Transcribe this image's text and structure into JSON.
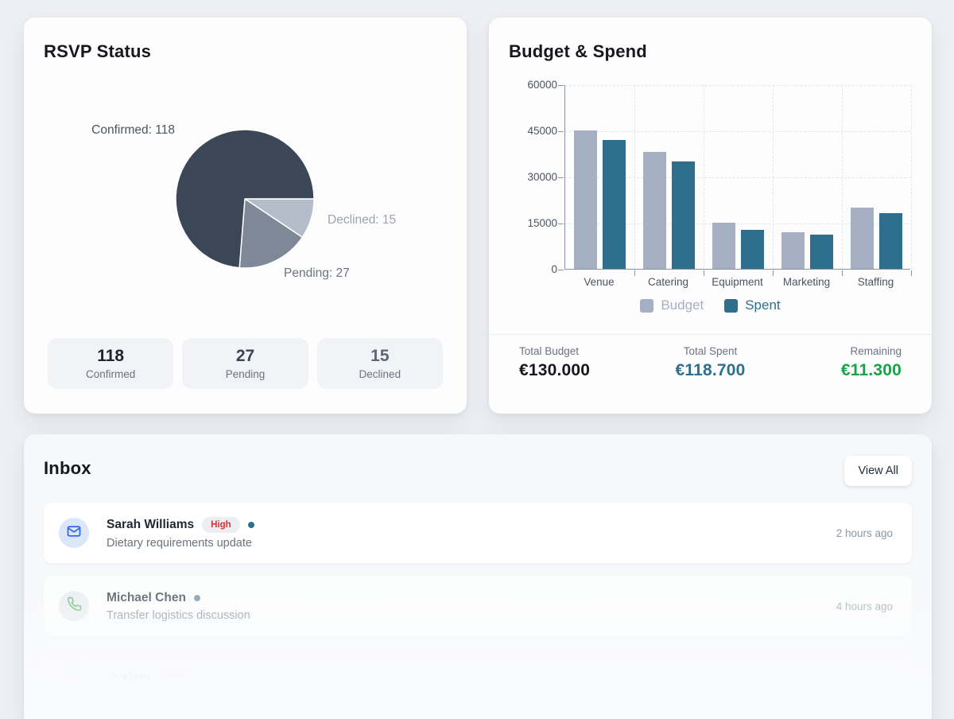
{
  "rsvp_card": {
    "title": "RSVP Status",
    "pie_labels": {
      "confirmed": "Confirmed: 118",
      "declined": "Declined: 15",
      "pending": "Pending: 27"
    },
    "stats": [
      {
        "value": "118",
        "label": "Confirmed",
        "value_color": "#20242c"
      },
      {
        "value": "27",
        "label": "Pending",
        "value_color": "#3a4454"
      },
      {
        "value": "15",
        "label": "Declined",
        "value_color": "#5c6675"
      }
    ]
  },
  "budget_card": {
    "title": "Budget & Spend",
    "totals": [
      {
        "label": "Total Budget",
        "value": "€130.000",
        "value_color": "#16181d"
      },
      {
        "label": "Total Spent",
        "value": "€118.700",
        "value_color": "#2e6f8e"
      },
      {
        "label": "Remaining",
        "value": "€11.300",
        "value_color": "#18a348"
      }
    ]
  },
  "inbox": {
    "title": "Inbox",
    "view_all_label": "View All",
    "messages": [
      {
        "sender": "Sarah Williams",
        "badge": "High",
        "subject": "Dietary requirements update",
        "time": "2 hours ago",
        "icon": "mail-icon",
        "unread_dot_color": "#2e6f8e"
      },
      {
        "sender": "Michael Chen",
        "badge": "",
        "subject": "Transfer logistics discussion",
        "time": "4 hours ago",
        "icon": "phone-icon",
        "unread_dot_color": "#5f7c94"
      },
      {
        "sender": "System",
        "badge": "High",
        "subject": "",
        "time": "",
        "icon": "bell-icon",
        "unread_dot_color": ""
      }
    ]
  },
  "chart_data": [
    {
      "type": "pie",
      "title": "RSVP Status",
      "labels": [
        "Declined",
        "Pending",
        "Confirmed"
      ],
      "values": [
        15,
        27,
        118
      ],
      "colors": [
        "#b4bdc9",
        "#7e8897",
        "#3b4757"
      ],
      "start_angle_deg_from_east_clockwise": 0,
      "direction": "clockwise"
    },
    {
      "type": "bar",
      "title": "Budget & Spend",
      "categories": [
        "Venue",
        "Catering",
        "Equipment",
        "Marketing",
        "Staffing"
      ],
      "series": [
        {
          "name": "Budget",
          "values": [
            45000,
            38000,
            15000,
            12000,
            20000
          ],
          "color": "#a5b0c4"
        },
        {
          "name": "Spent",
          "values": [
            42000,
            35000,
            12700,
            11000,
            18000
          ],
          "color": "#2e6f8e"
        }
      ],
      "xlabel": "",
      "ylabel": "",
      "ylim": [
        0,
        60000
      ],
      "yticks": [
        0,
        15000,
        30000,
        45000,
        60000
      ],
      "grid": true,
      "legend_position": "bottom"
    }
  ]
}
